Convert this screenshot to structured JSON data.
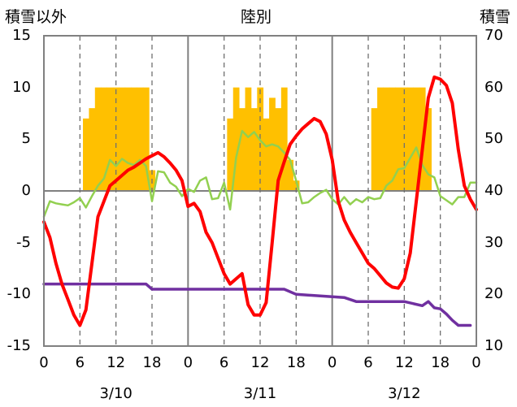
{
  "chart_data": {
    "type": "bar+line",
    "title": "陸別",
    "left_axis_label": "積雪以外",
    "right_axis_label": "積雪",
    "left_axis": {
      "min": -15,
      "max": 15,
      "ticks": [
        "15",
        "10",
        "5",
        "0",
        "-5",
        "-10",
        "-15"
      ]
    },
    "right_axis": {
      "min": 10,
      "max": 70,
      "ticks": [
        "70",
        "60",
        "50",
        "40",
        "30",
        "20",
        "10"
      ]
    },
    "x_axis": {
      "hours_range": [
        0,
        72
      ],
      "tick_labels": [
        "0",
        "6",
        "12",
        "18",
        "0",
        "6",
        "12",
        "18",
        "0",
        "6",
        "12",
        "18",
        "0"
      ],
      "date_labels": [
        "3/10",
        "3/11",
        "3/12"
      ]
    },
    "grid": {
      "vertical_dashed_hours": [
        6,
        12,
        18,
        30,
        36,
        42,
        54,
        60,
        66
      ],
      "vertical_solid_hours": [
        24,
        48
      ]
    },
    "colors": {
      "bars": "#ffc000",
      "red_line": "#ff0000",
      "green_line": "#92d050",
      "purple_line": "#7030a0",
      "frame": "#808080"
    },
    "bars": [
      {
        "hour": 7,
        "value": 7
      },
      {
        "hour": 8,
        "value": 8
      },
      {
        "hour": 9,
        "value": 10
      },
      {
        "hour": 10,
        "value": 10
      },
      {
        "hour": 11,
        "value": 10
      },
      {
        "hour": 12,
        "value": 10
      },
      {
        "hour": 13,
        "value": 10
      },
      {
        "hour": 14,
        "value": 10
      },
      {
        "hour": 15,
        "value": 10
      },
      {
        "hour": 16,
        "value": 10
      },
      {
        "hour": 17,
        "value": 10
      },
      {
        "hour": 18,
        "value": 2
      },
      {
        "hour": 31,
        "value": 7
      },
      {
        "hour": 32,
        "value": 10
      },
      {
        "hour": 33,
        "value": 8
      },
      {
        "hour": 34,
        "value": 10
      },
      {
        "hour": 35,
        "value": 8
      },
      {
        "hour": 36,
        "value": 10
      },
      {
        "hour": 37,
        "value": 7
      },
      {
        "hour": 38,
        "value": 9
      },
      {
        "hour": 39,
        "value": 8
      },
      {
        "hour": 40,
        "value": 10
      },
      {
        "hour": 41,
        "value": 3
      },
      {
        "hour": 42,
        "value": 1
      },
      {
        "hour": 55,
        "value": 8
      },
      {
        "hour": 56,
        "value": 10
      },
      {
        "hour": 57,
        "value": 10
      },
      {
        "hour": 58,
        "value": 10
      },
      {
        "hour": 59,
        "value": 10
      },
      {
        "hour": 60,
        "value": 10
      },
      {
        "hour": 61,
        "value": 10
      },
      {
        "hour": 62,
        "value": 10
      },
      {
        "hour": 63,
        "value": 10
      },
      {
        "hour": 64,
        "value": 8
      }
    ],
    "series": [
      {
        "color": "#ff0000",
        "axis": "left",
        "x": [
          0,
          1,
          2,
          3,
          4,
          5,
          6,
          7,
          8,
          9,
          10,
          11,
          12,
          13,
          14,
          15,
          16,
          17,
          18,
          19,
          20,
          21,
          22,
          23,
          24,
          25,
          26,
          27,
          28,
          29,
          30,
          31,
          32,
          33,
          34,
          35,
          36,
          37,
          38,
          39,
          40,
          41,
          42,
          43,
          44,
          45,
          46,
          47,
          48,
          49,
          50,
          51,
          52,
          53,
          54,
          55,
          56,
          57,
          58,
          59,
          60,
          61,
          62,
          63,
          64,
          65,
          66,
          67,
          68,
          69,
          70,
          71,
          72
        ],
        "y": [
          -3,
          -4.5,
          -7,
          -9,
          -10.5,
          -12,
          -13,
          -11.5,
          -7,
          -2.5,
          -1,
          0.5,
          1,
          1.5,
          2,
          2.3,
          2.7,
          3.1,
          3.4,
          3.7,
          3.3,
          2.7,
          2,
          1,
          -1.5,
          -1.2,
          -2,
          -4,
          -5,
          -6.5,
          -8,
          -9,
          -8.5,
          -8,
          -11,
          -12,
          -12,
          -10.8,
          -5,
          1,
          2.8,
          4.5,
          5.3,
          6,
          6.5,
          7,
          6.7,
          5.5,
          3,
          -1,
          -2.8,
          -4,
          -5,
          -6,
          -7,
          -7.5,
          -8.2,
          -8.9,
          -9.3,
          -9.4,
          -8.5,
          -6,
          -1,
          4,
          9,
          11,
          10.8,
          10.2,
          8.5,
          4,
          0.5,
          -0.8,
          -1.8
        ]
      },
      {
        "color": "#92d050",
        "axis": "left",
        "x": [
          0,
          1,
          2,
          3,
          4,
          5,
          6,
          7,
          8,
          9,
          10,
          11,
          12,
          13,
          14,
          15,
          16,
          17,
          18,
          19,
          20,
          21,
          22,
          23,
          24,
          25,
          26,
          27,
          28,
          29,
          30,
          31,
          32,
          33,
          34,
          35,
          36,
          37,
          38,
          39,
          40,
          41,
          42,
          43,
          44,
          45,
          46,
          47,
          48,
          49,
          50,
          51,
          52,
          53,
          54,
          55,
          56,
          57,
          58,
          59,
          60,
          61,
          62,
          63,
          64,
          65,
          66,
          67,
          68,
          69,
          70,
          71,
          72
        ],
        "y": [
          -2.5,
          -1,
          -1.2,
          -1.3,
          -1.4,
          -1.1,
          -0.7,
          -1.6,
          -0.5,
          0.5,
          1.2,
          3,
          2.4,
          3.1,
          2.7,
          2.5,
          3,
          2.4,
          -1,
          1.9,
          1.8,
          0.8,
          0.4,
          -0.5,
          0.2,
          -0.1,
          1,
          1.3,
          -0.8,
          -0.7,
          0.8,
          -1.8,
          3.2,
          5.8,
          5.2,
          5.7,
          4.9,
          4.3,
          4.5,
          4.3,
          3.7,
          3,
          1,
          -1.2,
          -1.1,
          -0.6,
          -0.2,
          0.1,
          -0.8,
          -1.3,
          -0.6,
          -1.3,
          -0.8,
          -1.1,
          -0.6,
          -0.8,
          -0.7,
          0.5,
          1,
          2.1,
          2.2,
          3.2,
          4.2,
          2.5,
          1.6,
          1.3,
          -0.5,
          -0.9,
          -1.3,
          -0.6,
          -0.6,
          0.8,
          0.8
        ]
      },
      {
        "color": "#7030a0",
        "axis": "right",
        "x": [
          0,
          17,
          18,
          40,
          42,
          50,
          52,
          60,
          63,
          64,
          65,
          66,
          67,
          68,
          69,
          71
        ],
        "y": [
          22,
          22,
          21,
          21,
          20,
          19.4,
          18.6,
          18.6,
          17.8,
          18.6,
          17.4,
          17.2,
          16.2,
          15,
          14,
          14
        ]
      }
    ]
  }
}
